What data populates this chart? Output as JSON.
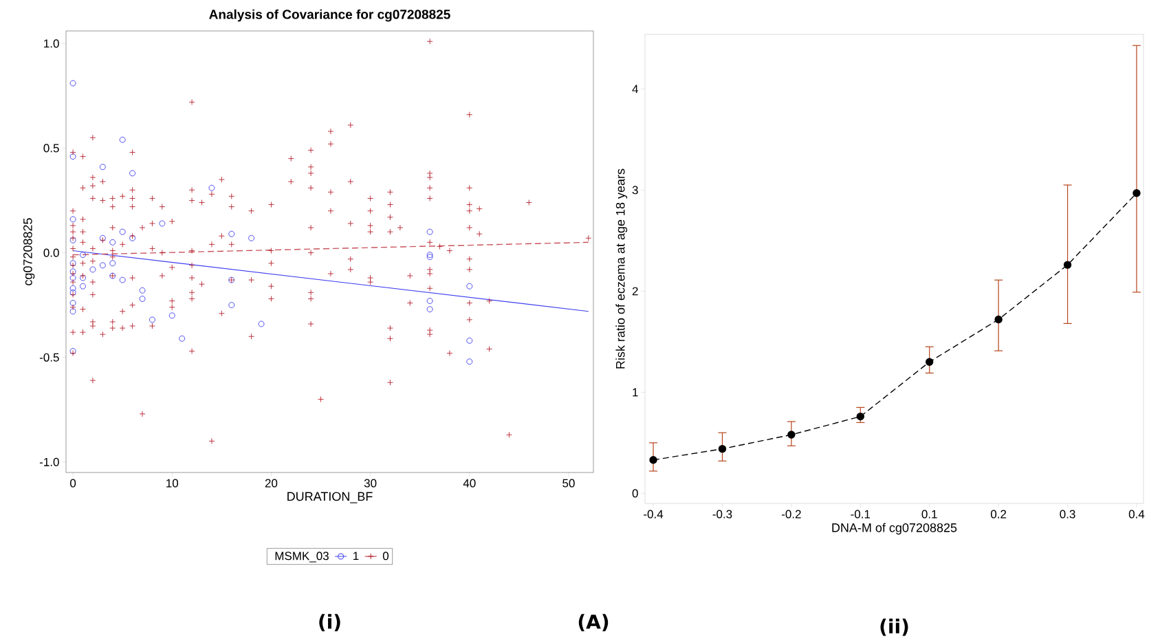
{
  "chart_data": [
    {
      "type": "scatter",
      "title": "Analysis of Covariance for cg07208825",
      "xlabel": "DURATION_BF",
      "ylabel": "cg07208825",
      "legend_title": "MSMK_03",
      "legend": "bottom",
      "xlim": [
        -0.7,
        52.5
      ],
      "xticks": [
        0,
        10,
        20,
        30,
        40,
        50
      ],
      "ylim": [
        -1.05,
        1.06
      ],
      "yticks": [
        {
          "value": -1,
          "label": "-1.0"
        },
        {
          "value": -0.5,
          "label": "-0.5"
        },
        {
          "value": 0,
          "label": "0.0"
        },
        {
          "value": 0.5,
          "label": "0.5"
        },
        {
          "value": 1,
          "label": "1.0"
        }
      ],
      "annotations": [
        "(i)",
        "(A)"
      ],
      "series": [
        {
          "name": "1",
          "type": "scatter",
          "color": "#3c3cf0",
          "marker": "circle",
          "x": [
            0,
            0,
            0,
            0,
            0,
            0,
            0,
            0,
            0,
            0,
            0,
            0,
            1,
            1,
            1,
            2,
            3,
            3,
            3,
            4,
            4,
            4,
            5,
            5,
            5,
            6,
            6,
            7,
            7,
            8,
            9,
            10,
            11,
            14,
            16,
            16,
            16,
            18,
            19,
            36,
            36,
            36,
            36,
            36,
            40,
            40,
            40
          ],
          "values": [
            0.81,
            0.46,
            0.16,
            0.06,
            -0.05,
            -0.09,
            -0.12,
            -0.17,
            -0.19,
            -0.24,
            -0.28,
            -0.47,
            -0.01,
            -0.12,
            -0.16,
            -0.08,
            0.41,
            0.07,
            -0.06,
            0.05,
            -0.05,
            -0.11,
            0.54,
            0.1,
            -0.13,
            0.38,
            0.07,
            -0.18,
            -0.22,
            -0.32,
            0.14,
            -0.3,
            -0.41,
            0.31,
            0.09,
            -0.13,
            -0.25,
            0.07,
            -0.34,
            0.1,
            -0.01,
            -0.02,
            -0.23,
            -0.27,
            -0.16,
            -0.42,
            -0.52
          ]
        },
        {
          "name": "0",
          "type": "scatter",
          "color": "#b5212e",
          "marker": "cross",
          "x": [
            0,
            0,
            0,
            0,
            0,
            0,
            0,
            0,
            0,
            0,
            0,
            0,
            0,
            0,
            1,
            1,
            1,
            1,
            1,
            1,
            1,
            1,
            1,
            2,
            2,
            2,
            2,
            2,
            2,
            2,
            2,
            2,
            2,
            2,
            3,
            3,
            3,
            3,
            4,
            4,
            4,
            4,
            4,
            4,
            4,
            4,
            5,
            5,
            5,
            5,
            6,
            6,
            6,
            6,
            6,
            6,
            6,
            6,
            7,
            7,
            8,
            8,
            8,
            8,
            9,
            9,
            9,
            10,
            10,
            10,
            10,
            12,
            12,
            12,
            12,
            12,
            12,
            12,
            12,
            12,
            13,
            13,
            14,
            14,
            14,
            15,
            15,
            15,
            16,
            16,
            16,
            16,
            18,
            18,
            18,
            20,
            20,
            20,
            20,
            20,
            22,
            22,
            24,
            24,
            24,
            24,
            24,
            24,
            24,
            24,
            24,
            25,
            26,
            26,
            26,
            26,
            26,
            28,
            28,
            28,
            28,
            28,
            30,
            30,
            30,
            30,
            30,
            30,
            32,
            32,
            32,
            32,
            32,
            32,
            32,
            33,
            34,
            34,
            36,
            36,
            36,
            36,
            36,
            36,
            36,
            36,
            36,
            36,
            36,
            37,
            38,
            38,
            40,
            40,
            40,
            40,
            40,
            40,
            40,
            40,
            40,
            41,
            41,
            42,
            42,
            44,
            46,
            52
          ],
          "values": [
            0.48,
            0.2,
            0.13,
            0.1,
            0.07,
            0.02,
            -0.02,
            -0.06,
            -0.1,
            -0.14,
            -0.2,
            -0.26,
            -0.38,
            -0.48,
            0.46,
            0.31,
            0.16,
            0.1,
            0.05,
            -0.05,
            -0.11,
            -0.27,
            -0.38,
            0.55,
            0.36,
            0.32,
            0.26,
            0.02,
            -0.04,
            -0.14,
            -0.2,
            -0.33,
            -0.35,
            -0.61,
            0.34,
            0.25,
            0.06,
            -0.39,
            0.26,
            0.22,
            0.12,
            0.01,
            -0.02,
            -0.11,
            -0.33,
            -0.36,
            0.27,
            0.04,
            -0.28,
            -0.36,
            0.48,
            0.3,
            0.26,
            0.22,
            0.08,
            -0.12,
            -0.25,
            -0.35,
            0.12,
            -0.77,
            0.26,
            0.14,
            0.02,
            -0.35,
            0.22,
            0.0,
            -0.11,
            0.15,
            -0.07,
            -0.23,
            -0.26,
            0.72,
            0.3,
            0.25,
            0.01,
            -0.06,
            -0.12,
            -0.19,
            -0.22,
            -0.47,
            0.24,
            -0.15,
            0.28,
            0.04,
            -0.9,
            0.35,
            0.08,
            -0.29,
            0.27,
            0.22,
            0.04,
            -0.13,
            0.2,
            -0.13,
            -0.4,
            0.23,
            0.01,
            -0.05,
            -0.16,
            -0.22,
            0.45,
            0.34,
            0.49,
            0.41,
            0.38,
            0.31,
            0.12,
            0.0,
            -0.19,
            -0.22,
            -0.34,
            -0.7,
            0.58,
            0.52,
            0.29,
            0.2,
            -0.1,
            0.61,
            0.34,
            0.14,
            -0.03,
            -0.08,
            0.26,
            0.2,
            0.13,
            0.1,
            -0.12,
            -0.14,
            0.29,
            0.23,
            0.17,
            0.1,
            -0.36,
            -0.41,
            -0.62,
            0.12,
            -0.11,
            -0.24,
            1.01,
            0.38,
            0.36,
            0.31,
            0.26,
            0.05,
            -0.08,
            -0.1,
            -0.17,
            -0.37,
            -0.39,
            0.03,
            0.01,
            -0.48,
            0.66,
            0.31,
            0.23,
            0.2,
            0.12,
            -0.03,
            -0.08,
            -0.24,
            -0.32,
            0.21,
            0.09,
            -0.23,
            -0.46,
            -0.87,
            0.24,
            0.07
          ]
        },
        {
          "type": "line",
          "color": "#3c3cf0",
          "line_style": "solid",
          "marker": "none",
          "x": [
            0,
            52
          ],
          "values": [
            0.01,
            -0.28
          ]
        },
        {
          "type": "line",
          "color": "#c9525c",
          "line_style": "dashed",
          "marker": "none",
          "x": [
            0,
            52
          ],
          "values": [
            -0.01,
            0.05
          ]
        }
      ]
    },
    {
      "type": "line",
      "xlabel": "DNA-M of cg07208825",
      "ylabel": "Risk ratio of eczema at age 18 years",
      "categories": [
        "-0.4",
        "-0.3",
        "-0.2",
        "-0.1",
        "0.1",
        "0.2",
        "0.3",
        "0.4"
      ],
      "ylim": [
        -0.1,
        4.54
      ],
      "yticks": [
        0,
        1,
        2,
        3,
        4
      ],
      "marker": "circle",
      "line_style": "dashed",
      "annotations": [
        "(ii)"
      ],
      "series": [
        {
          "color": "#000000",
          "values": [
            0.33,
            0.44,
            0.58,
            0.76,
            1.3,
            1.72,
            2.26,
            2.97
          ],
          "errors": [
            [
              0.22,
              0.5
            ],
            [
              0.32,
              0.6
            ],
            [
              0.47,
              0.71
            ],
            [
              0.7,
              0.85
            ],
            [
              1.19,
              1.45
            ],
            [
              1.41,
              2.11
            ],
            [
              1.68,
              3.05
            ],
            [
              1.99,
              4.43
            ]
          ]
        }
      ]
    }
  ]
}
